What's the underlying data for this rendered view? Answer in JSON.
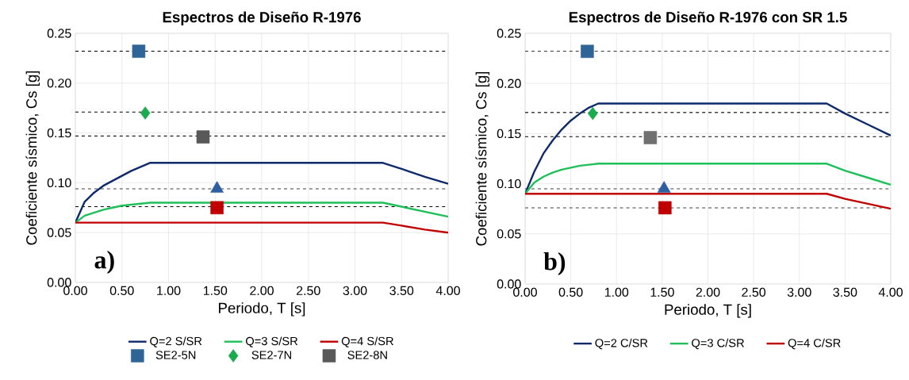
{
  "chart_data": [
    {
      "type": "line",
      "title": "Espectros de  Diseño R-1976",
      "xlabel": "Periodo, T [s]",
      "ylabel": "Coeficiente sísmico, Cs [g]",
      "xlim": [
        0,
        4
      ],
      "ylim": [
        0,
        0.25
      ],
      "xticks": [
        {
          "value": 0,
          "label": "0.00"
        },
        {
          "value": 0.5,
          "label": "0.50"
        },
        {
          "value": 1,
          "label": "1.00"
        },
        {
          "value": 1.5,
          "label": "1.50"
        },
        {
          "value": 2,
          "label": "2.00"
        },
        {
          "value": 2.5,
          "label": "2.50"
        },
        {
          "value": 3,
          "label": "3.00"
        },
        {
          "value": 3.5,
          "label": "3.50"
        },
        {
          "value": 4,
          "label": "4.00"
        }
      ],
      "yticks": [
        {
          "value": 0,
          "label": "0.00"
        },
        {
          "value": 0.05,
          "label": "0.05"
        },
        {
          "value": 0.1,
          "label": "0.10"
        },
        {
          "value": 0.15,
          "label": "0.15"
        },
        {
          "value": 0.2,
          "label": "0.20"
        },
        {
          "value": 0.25,
          "label": "0.25"
        }
      ],
      "grid": true,
      "legend": "bottom",
      "annotations": [
        "a)"
      ],
      "ref_lines": [
        {
          "axis": "y",
          "value": 0.232,
          "color": "#000000",
          "line_style": "dashed"
        },
        {
          "axis": "y",
          "value": 0.171,
          "color": "#000000",
          "line_style": "dashed"
        },
        {
          "axis": "y",
          "value": 0.147,
          "color": "#000000",
          "line_style": "dashed"
        },
        {
          "axis": "y",
          "value": 0.094,
          "color": "#000000",
          "line_style": "dashed"
        },
        {
          "axis": "y",
          "value": 0.076,
          "color": "#000000",
          "line_style": "dashed"
        }
      ],
      "series": [
        {
          "name": "Q=2 S/SR",
          "color": "#0f2a6b",
          "x": [
            0,
            0.1,
            0.2,
            0.3,
            0.4,
            0.5,
            0.6,
            0.7,
            0.8,
            3.3,
            3.5,
            3.75,
            4.0
          ],
          "values": [
            0.06,
            0.081,
            0.09,
            0.097,
            0.102,
            0.107,
            0.112,
            0.116,
            0.12,
            0.12,
            0.114,
            0.106,
            0.099
          ]
        },
        {
          "name": "Q=3 S/SR",
          "color": "#1fbf5a",
          "x": [
            0,
            0.1,
            0.2,
            0.3,
            0.4,
            0.5,
            0.6,
            0.7,
            0.8,
            3.3,
            3.5,
            3.75,
            4.0
          ],
          "values": [
            0.06,
            0.067,
            0.07,
            0.073,
            0.075,
            0.077,
            0.078,
            0.079,
            0.08,
            0.08,
            0.076,
            0.071,
            0.066
          ]
        },
        {
          "name": "Q=4 S/SR",
          "color": "#c00000",
          "x": [
            0,
            3.3,
            3.5,
            3.75,
            4.0
          ],
          "values": [
            0.06,
            0.06,
            0.057,
            0.053,
            0.05
          ]
        },
        {
          "name": "SE2-5N",
          "type": "scatter",
          "marker": "square",
          "color": "#2e6496",
          "x": [
            0.68
          ],
          "values": [
            0.232
          ]
        },
        {
          "name": "SE2-7N",
          "type": "scatter",
          "marker": "diamond",
          "color": "#1aaa50",
          "x": [
            0.75
          ],
          "values": [
            0.17
          ]
        },
        {
          "name": "SE2-8N",
          "type": "scatter",
          "marker": "square",
          "color": "#595959",
          "x": [
            1.37
          ],
          "values": [
            0.146
          ]
        },
        {
          "type": "scatter",
          "marker": "triangle",
          "color": "#2e5fa0",
          "x": [
            1.52
          ],
          "values": [
            0.094
          ]
        },
        {
          "type": "scatter",
          "marker": "square",
          "color": "#c00000",
          "x": [
            1.52
          ],
          "values": [
            0.075
          ]
        }
      ]
    },
    {
      "type": "line",
      "title": "Espectros de Diseño R-1976 con SR 1.5",
      "xlabel": "Periodo, T [s]",
      "ylabel": "Coeficiente sísmico, Cs [g]",
      "xlim": [
        0,
        4
      ],
      "ylim": [
        0,
        0.25
      ],
      "xticks": [
        {
          "value": 0,
          "label": "0.00"
        },
        {
          "value": 0.5,
          "label": "0.50"
        },
        {
          "value": 1,
          "label": "1.00"
        },
        {
          "value": 1.5,
          "label": "1.50"
        },
        {
          "value": 2,
          "label": "2.00"
        },
        {
          "value": 2.5,
          "label": "2.50"
        },
        {
          "value": 3,
          "label": "3.00"
        },
        {
          "value": 3.5,
          "label": "3.50"
        },
        {
          "value": 4,
          "label": "4.00"
        }
      ],
      "yticks": [
        {
          "value": 0,
          "label": "0.00"
        },
        {
          "value": 0.05,
          "label": "0.05"
        },
        {
          "value": 0.1,
          "label": "0.10"
        },
        {
          "value": 0.15,
          "label": "0.15"
        },
        {
          "value": 0.2,
          "label": "0.20"
        },
        {
          "value": 0.25,
          "label": "0.25"
        }
      ],
      "grid": true,
      "legend": "bottom",
      "annotations": [
        "b)"
      ],
      "ref_lines": [
        {
          "axis": "y",
          "value": 0.232,
          "color": "#000000",
          "line_style": "dashed"
        },
        {
          "axis": "y",
          "value": 0.171,
          "color": "#000000",
          "line_style": "dashed"
        },
        {
          "axis": "y",
          "value": 0.147,
          "color": "#000000",
          "line_style": "dashed"
        },
        {
          "axis": "y",
          "value": 0.095,
          "color": "#000000",
          "line_style": "dashed"
        },
        {
          "axis": "y",
          "value": 0.076,
          "color": "#000000",
          "line_style": "dashed"
        }
      ],
      "series": [
        {
          "name": "Q=2 C/SR",
          "color": "#0f2a6b",
          "x": [
            0,
            0.1,
            0.2,
            0.3,
            0.4,
            0.5,
            0.6,
            0.7,
            0.8,
            3.3,
            3.5,
            3.75,
            4.0
          ],
          "values": [
            0.09,
            0.112,
            0.13,
            0.143,
            0.154,
            0.163,
            0.17,
            0.176,
            0.18,
            0.18,
            0.17,
            0.159,
            0.148
          ]
        },
        {
          "name": "Q=3 C/SR",
          "color": "#1fbf5a",
          "x": [
            0,
            0.1,
            0.2,
            0.3,
            0.4,
            0.5,
            0.6,
            0.7,
            0.8,
            3.3,
            3.5,
            3.75,
            4.0
          ],
          "values": [
            0.09,
            0.101,
            0.107,
            0.111,
            0.114,
            0.116,
            0.118,
            0.119,
            0.12,
            0.12,
            0.113,
            0.106,
            0.099
          ]
        },
        {
          "name": "Q=4 C/SR",
          "color": "#c00000",
          "x": [
            0,
            3.3,
            3.5,
            3.75,
            4.0
          ],
          "values": [
            0.09,
            0.09,
            0.085,
            0.08,
            0.075
          ]
        },
        {
          "type": "scatter",
          "marker": "square",
          "color": "#2e6496",
          "x": [
            0.68
          ],
          "values": [
            0.232
          ]
        },
        {
          "type": "scatter",
          "marker": "diamond",
          "color": "#1aaa50",
          "x": [
            0.74
          ],
          "values": [
            0.17
          ]
        },
        {
          "type": "scatter",
          "marker": "square",
          "color": "#707070",
          "x": [
            1.37
          ],
          "values": [
            0.146
          ]
        },
        {
          "type": "scatter",
          "marker": "triangle",
          "color": "#2e5fa0",
          "x": [
            1.52
          ],
          "values": [
            0.095
          ]
        },
        {
          "type": "scatter",
          "marker": "square",
          "color": "#c00000",
          "x": [
            1.53
          ],
          "values": [
            0.076
          ]
        }
      ]
    }
  ]
}
